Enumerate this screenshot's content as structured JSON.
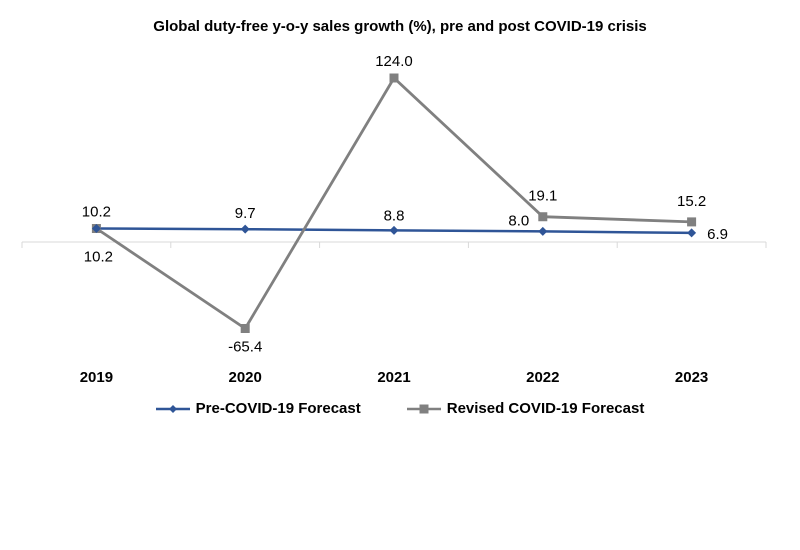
{
  "chart_data": {
    "type": "line",
    "title": "Global duty-free y-o-y sales growth (%), pre and post COVID-19 crisis",
    "categories": [
      "2019",
      "2020",
      "2021",
      "2022",
      "2023"
    ],
    "series": [
      {
        "name": "Pre-COVID-19 Forecast",
        "values": [
          10.2,
          9.7,
          8.8,
          8.0,
          6.9
        ],
        "labels": [
          "10.2",
          "9.7",
          "8.8",
          "8.0",
          "6.9"
        ],
        "color": "#2f5597",
        "marker": "diamond"
      },
      {
        "name": "Revised COVID-19 Forecast",
        "values": [
          10.2,
          -65.4,
          124.0,
          19.1,
          15.2
        ],
        "labels": [
          "10.2",
          "-65.4",
          "124.0",
          "19.1",
          "15.2"
        ],
        "color": "#808080",
        "marker": "square"
      }
    ],
    "ylim": [
      -70,
      130
    ],
    "grid": false,
    "legend_position": "bottom"
  }
}
